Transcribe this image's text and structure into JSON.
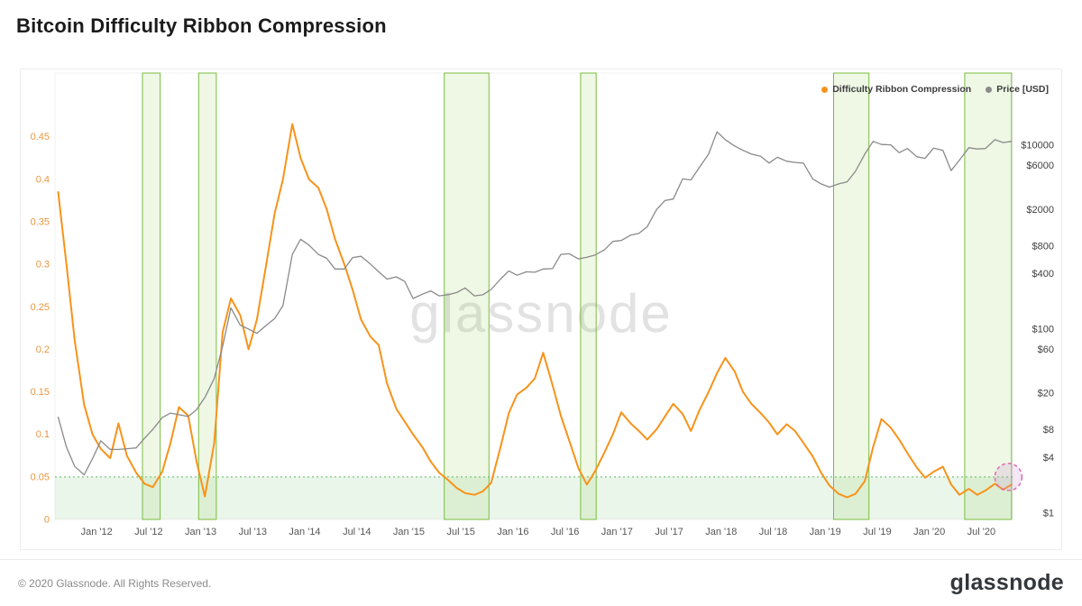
{
  "page": {
    "title": "Bitcoin Difficulty Ribbon Compression",
    "watermark": "glassnode",
    "footer": {
      "copyright": "© 2020 Glassnode. All Rights Reserved.",
      "brand": "glassnode"
    }
  },
  "legend": [
    {
      "label": "Difficulty Ribbon Compression",
      "color": "#f7931a"
    },
    {
      "label": "Price [USD]",
      "color": "#8a8a8a"
    }
  ],
  "chart_data": {
    "type": "line",
    "title": "Bitcoin Difficulty Ribbon Compression",
    "grid": false,
    "legend_position": "top-right",
    "x_domain": [
      2011.6,
      2020.8
    ],
    "x_axis": {
      "ticks": [
        2012.0,
        2012.5,
        2013.0,
        2013.5,
        2014.0,
        2014.5,
        2015.0,
        2015.5,
        2016.0,
        2016.5,
        2017.0,
        2017.5,
        2018.0,
        2018.5,
        2019.0,
        2019.5,
        2020.0,
        2020.5
      ],
      "labels": [
        "Jan '12",
        "Jul '12",
        "Jan '13",
        "Jul '13",
        "Jan '14",
        "Jul '14",
        "Jan '15",
        "Jul '15",
        "Jan '16",
        "Jul '16",
        "Jan '17",
        "Jul '17",
        "Jan '18",
        "Jul '18",
        "Jan '19",
        "Jul '19",
        "Jan '20",
        "Jul '20"
      ]
    },
    "y_left": {
      "label": "Difficulty Ribbon Compression",
      "lim": [
        0,
        0.525
      ],
      "ticks": [
        0,
        0.05,
        0.1,
        0.15,
        0.2,
        0.25,
        0.3,
        0.35,
        0.4,
        0.45
      ],
      "labels": [
        "0",
        "0.05",
        "0.1",
        "0.15",
        "0.2",
        "0.25",
        "0.3",
        "0.35",
        "0.4",
        "0.45"
      ],
      "color": "#e8963f"
    },
    "y_right": {
      "label": "Price [USD]",
      "scale": "log",
      "lim": [
        0.85,
        61000
      ],
      "ticks": [
        1,
        4,
        8,
        20,
        60,
        100,
        400,
        800,
        2000,
        6000,
        10000
      ],
      "labels": [
        "$1",
        "$4",
        "$8",
        "$20",
        "$60",
        "$100",
        "$400",
        "$800",
        "$2000",
        "$6000",
        "$10000"
      ],
      "color": "#3f3f3f"
    },
    "x": [
      2011.63,
      2011.71,
      2011.79,
      2011.88,
      2011.96,
      2012.04,
      2012.13,
      2012.21,
      2012.29,
      2012.38,
      2012.46,
      2012.54,
      2012.63,
      2012.71,
      2012.79,
      2012.88,
      2012.96,
      2013.04,
      2013.13,
      2013.21,
      2013.29,
      2013.38,
      2013.46,
      2013.54,
      2013.63,
      2013.71,
      2013.79,
      2013.88,
      2013.96,
      2014.04,
      2014.13,
      2014.21,
      2014.29,
      2014.38,
      2014.46,
      2014.54,
      2014.63,
      2014.71,
      2014.79,
      2014.88,
      2014.96,
      2015.04,
      2015.13,
      2015.21,
      2015.29,
      2015.38,
      2015.46,
      2015.54,
      2015.63,
      2015.71,
      2015.79,
      2015.88,
      2015.96,
      2016.04,
      2016.13,
      2016.21,
      2016.29,
      2016.38,
      2016.46,
      2016.54,
      2016.63,
      2016.71,
      2016.79,
      2016.88,
      2016.96,
      2017.04,
      2017.13,
      2017.21,
      2017.29,
      2017.38,
      2017.46,
      2017.54,
      2017.63,
      2017.71,
      2017.79,
      2017.88,
      2017.96,
      2018.04,
      2018.13,
      2018.21,
      2018.29,
      2018.38,
      2018.46,
      2018.54,
      2018.63,
      2018.71,
      2018.79,
      2018.88,
      2018.96,
      2019.04,
      2019.13,
      2019.21,
      2019.29,
      2019.38,
      2019.46,
      2019.54,
      2019.63,
      2019.71,
      2019.79,
      2019.88,
      2019.96,
      2020.04,
      2020.13,
      2020.21,
      2020.29,
      2020.38,
      2020.46,
      2020.54,
      2020.63,
      2020.71,
      2020.79
    ],
    "series": [
      {
        "name": "Difficulty Ribbon Compression",
        "axis": "left",
        "color": "#f7931a",
        "width": 2,
        "values": [
          0.385,
          0.3,
          0.21,
          0.135,
          0.1,
          0.083,
          0.072,
          0.113,
          0.075,
          0.055,
          0.042,
          0.038,
          0.056,
          0.09,
          0.132,
          0.122,
          0.068,
          0.027,
          0.09,
          0.22,
          0.26,
          0.24,
          0.2,
          0.235,
          0.3,
          0.36,
          0.4,
          0.465,
          0.425,
          0.4,
          0.39,
          0.365,
          0.33,
          0.3,
          0.27,
          0.235,
          0.215,
          0.205,
          0.16,
          0.13,
          0.115,
          0.1,
          0.085,
          0.068,
          0.055,
          0.046,
          0.037,
          0.031,
          0.029,
          0.033,
          0.043,
          0.085,
          0.125,
          0.147,
          0.155,
          0.166,
          0.196,
          0.158,
          0.122,
          0.093,
          0.06,
          0.041,
          0.057,
          0.079,
          0.1,
          0.126,
          0.113,
          0.104,
          0.094,
          0.106,
          0.121,
          0.136,
          0.124,
          0.104,
          0.128,
          0.15,
          0.172,
          0.19,
          0.174,
          0.15,
          0.136,
          0.125,
          0.114,
          0.1,
          0.112,
          0.104,
          0.09,
          0.074,
          0.055,
          0.04,
          0.03,
          0.026,
          0.03,
          0.045,
          0.085,
          0.118,
          0.108,
          0.094,
          0.078,
          0.061,
          0.049,
          0.056,
          0.062,
          0.041,
          0.029,
          0.036,
          0.029,
          0.034,
          0.042,
          0.035,
          0.041
        ]
      },
      {
        "name": "Price [USD]",
        "axis": "right",
        "color": "#8a8a8a",
        "width": 1.3,
        "values": [
          11.0,
          5.2,
          3.2,
          2.6,
          3.9,
          6.1,
          4.9,
          4.9,
          5.0,
          5.1,
          6.5,
          8.1,
          10.9,
          12.2,
          11.7,
          11.2,
          13.3,
          18,
          29,
          65,
          170,
          110,
          100,
          90,
          110,
          130,
          180,
          650,
          950,
          820,
          650,
          590,
          450,
          450,
          600,
          620,
          510,
          420,
          350,
          370,
          330,
          215,
          240,
          260,
          230,
          237,
          250,
          280,
          230,
          236,
          270,
          350,
          430,
          385,
          420,
          415,
          450,
          455,
          650,
          660,
          580,
          605,
          640,
          730,
          900,
          920,
          1050,
          1100,
          1300,
          2000,
          2500,
          2600,
          4300,
          4200,
          5700,
          8000,
          14000,
          11500,
          9800,
          8800,
          8000,
          7600,
          6400,
          7400,
          6700,
          6500,
          6400,
          4300,
          3800,
          3500,
          3800,
          4000,
          5200,
          8000,
          11000,
          10200,
          10100,
          8300,
          9200,
          7500,
          7200,
          9300,
          8800,
          5300,
          6900,
          9400,
          9100,
          9200,
          11500,
          10700,
          11000
        ]
      }
    ],
    "highlight_bands": {
      "description": "green buy-zone bands where compression is low",
      "fill": "rgba(139,195,74,0.14)",
      "color": "#79bd3f",
      "ranges": [
        [
          2012.44,
          2012.61
        ],
        [
          2012.98,
          2013.15
        ],
        [
          2015.34,
          2015.77
        ],
        [
          2016.65,
          2016.8
        ],
        [
          2019.08,
          2019.42
        ],
        [
          2020.34,
          2020.79
        ]
      ]
    },
    "threshold": {
      "value": 0.05,
      "line_color": "#5fb765",
      "fill": "rgba(129,199,132,0.16)"
    },
    "highlight_point": {
      "x": 2020.76,
      "value": 0.05,
      "radius": 15,
      "stroke": "#e06bb4",
      "fill": "rgba(206,147,216,0.22)"
    }
  }
}
